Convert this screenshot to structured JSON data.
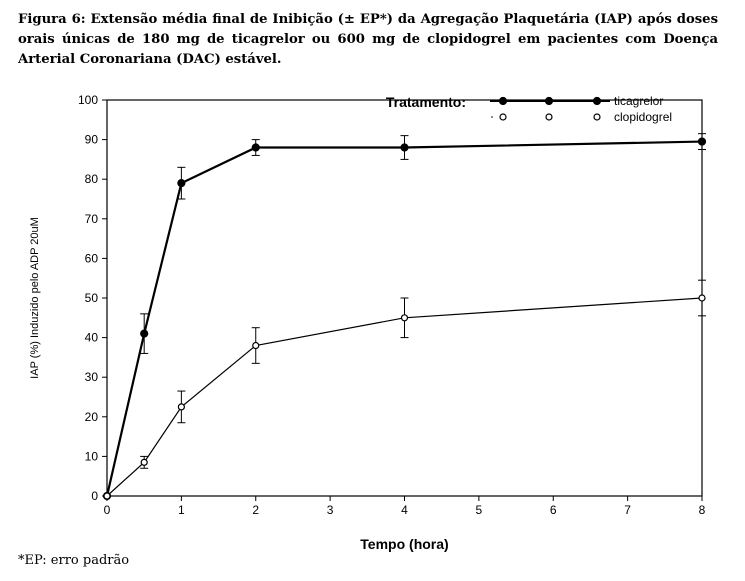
{
  "caption": "Figura 6: Extensão média final de Inibição (± EP*) da Agregação Plaquetária (IAP) após doses orais únicas de 180 mg de ticagrelor ou 600 mg de clopidogrel em pacientes com Doença Arterial Coronariana (DAC) estável.",
  "footnote": "*EP: erro padrão",
  "chart_data": {
    "type": "line",
    "xlabel": "Tempo (hora)",
    "ylabel": "IAP (%) Induzido pelo ADP 20uM",
    "xlim": [
      0,
      8
    ],
    "ylim": [
      0,
      100
    ],
    "xticks": [
      "0",
      "1",
      "2",
      "3",
      "4",
      "5",
      "6",
      "7",
      "8"
    ],
    "yticks": [
      "0",
      "10",
      "20",
      "30",
      "40",
      "50",
      "60",
      "70",
      "80",
      "90",
      "100"
    ],
    "legend": {
      "title": "Tratamento:",
      "placement": "top-right"
    },
    "series": [
      {
        "name": "ticagrelor",
        "marker": "filled-circle",
        "x": [
          0,
          0.5,
          1,
          2,
          4,
          8
        ],
        "y": [
          0,
          41,
          79,
          88,
          88,
          89.5
        ],
        "err": [
          0,
          5,
          4,
          2,
          3,
          2
        ]
      },
      {
        "name": "clopidogrel",
        "marker": "open-circle",
        "x": [
          0,
          0.5,
          1,
          2,
          4,
          8
        ],
        "y": [
          0,
          8.5,
          22.5,
          38,
          45,
          50
        ],
        "err": [
          0,
          1.5,
          4,
          4.5,
          5,
          4.5
        ]
      }
    ]
  }
}
